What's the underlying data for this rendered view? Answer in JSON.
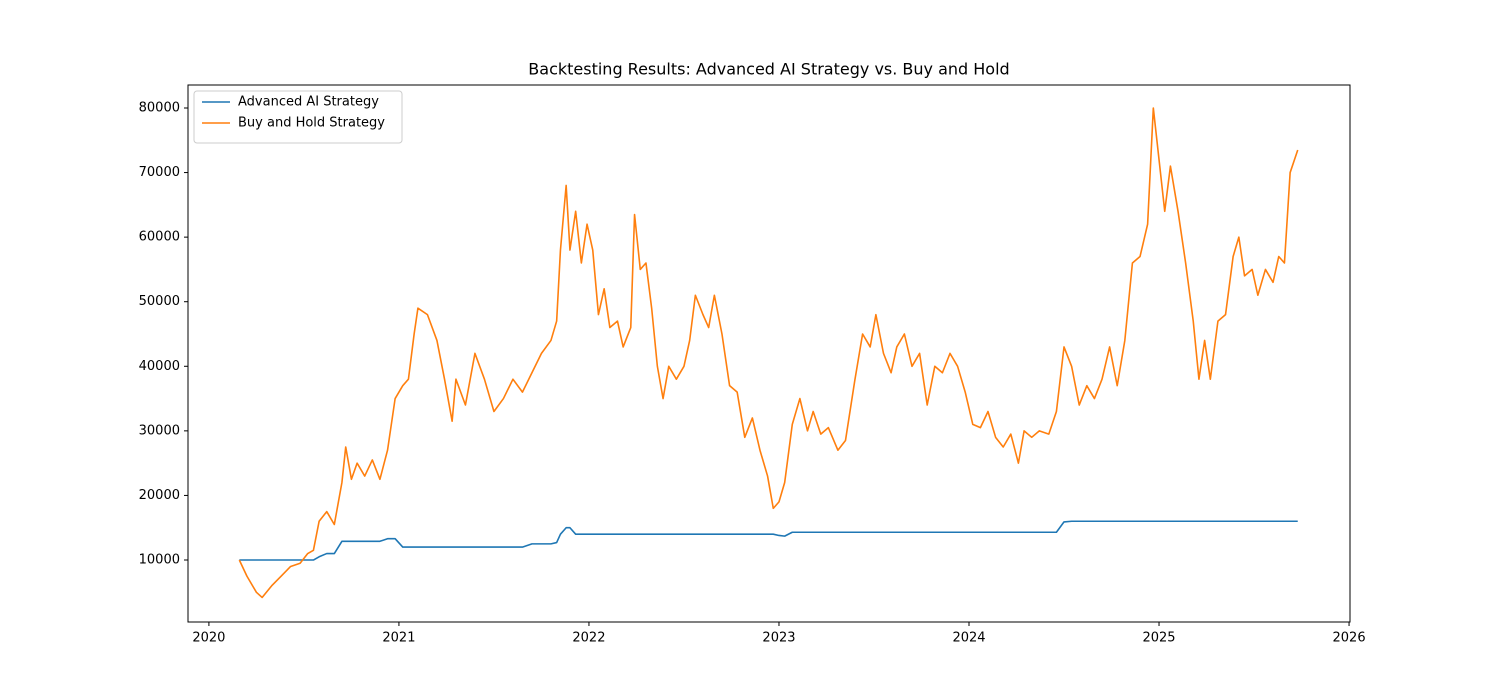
{
  "chart_data": {
    "type": "line",
    "title": "Backtesting Results: Advanced AI Strategy vs. Buy and Hold",
    "x": [
      2020.16,
      2020.2,
      2020.25,
      2020.28,
      2020.33,
      2020.38,
      2020.43,
      2020.48,
      2020.52,
      2020.55,
      2020.58,
      2020.62,
      2020.66,
      2020.7,
      2020.72,
      2020.75,
      2020.78,
      2020.82,
      2020.86,
      2020.9,
      2020.94,
      2020.98,
      2021.02,
      2021.05,
      2021.08,
      2021.1,
      2021.15,
      2021.2,
      2021.24,
      2021.28,
      2021.3,
      2021.35,
      2021.4,
      2021.45,
      2021.5,
      2021.55,
      2021.6,
      2021.65,
      2021.7,
      2021.75,
      2021.8,
      2021.83,
      2021.85,
      2021.88,
      2021.9,
      2021.93,
      2021.96,
      2021.99,
      2022.02,
      2022.05,
      2022.08,
      2022.11,
      2022.15,
      2022.18,
      2022.22,
      2022.24,
      2022.27,
      2022.3,
      2022.33,
      2022.36,
      2022.39,
      2022.42,
      2022.46,
      2022.5,
      2022.53,
      2022.56,
      2022.6,
      2022.63,
      2022.66,
      2022.7,
      2022.74,
      2022.78,
      2022.82,
      2022.86,
      2022.9,
      2022.94,
      2022.97,
      2023.0,
      2023.03,
      2023.07,
      2023.11,
      2023.15,
      2023.18,
      2023.22,
      2023.26,
      2023.31,
      2023.35,
      2023.4,
      2023.44,
      2023.48,
      2023.51,
      2023.55,
      2023.59,
      2023.62,
      2023.66,
      2023.7,
      2023.74,
      2023.78,
      2023.82,
      2023.86,
      2023.9,
      2023.94,
      2023.98,
      2024.02,
      2024.06,
      2024.1,
      2024.14,
      2024.18,
      2024.22,
      2024.26,
      2024.29,
      2024.33,
      2024.37,
      2024.42,
      2024.46,
      2024.5,
      2024.54,
      2024.58,
      2024.62,
      2024.66,
      2024.7,
      2024.74,
      2024.78,
      2024.82,
      2024.86,
      2024.9,
      2024.94,
      2024.97,
      2025.0,
      2025.03,
      2025.06,
      2025.1,
      2025.14,
      2025.18,
      2025.21,
      2025.24,
      2025.27,
      2025.31,
      2025.35,
      2025.39,
      2025.42,
      2025.45,
      2025.49,
      2025.52,
      2025.56,
      2025.6,
      2025.63,
      2025.66,
      2025.69,
      2025.73
    ],
    "series": [
      {
        "name": "Advanced AI Strategy",
        "color": "#1f77b4",
        "values": [
          10000,
          10000,
          10000,
          10000,
          10000,
          10000,
          10000,
          10000,
          10000,
          10000,
          10500,
          11000,
          11000,
          12900,
          12900,
          12900,
          12900,
          12900,
          12900,
          12900,
          13300,
          13300,
          12000,
          12000,
          12000,
          12000,
          12000,
          12000,
          12000,
          12000,
          12000,
          12000,
          12000,
          12000,
          12000,
          12000,
          12000,
          12000,
          12500,
          12500,
          12500,
          12700,
          14000,
          15000,
          15000,
          14000,
          14000,
          14000,
          14000,
          14000,
          14000,
          14000,
          14000,
          14000,
          14000,
          14000,
          14000,
          14000,
          14000,
          14000,
          14000,
          14000,
          14000,
          14000,
          14000,
          14000,
          14000,
          14000,
          14000,
          14000,
          14000,
          14000,
          14000,
          14000,
          14000,
          14000,
          14000,
          13800,
          13700,
          14300,
          14300,
          14300,
          14300,
          14300,
          14300,
          14300,
          14300,
          14300,
          14300,
          14300,
          14300,
          14300,
          14300,
          14300,
          14300,
          14300,
          14300,
          14300,
          14300,
          14300,
          14300,
          14300,
          14300,
          14300,
          14300,
          14300,
          14300,
          14300,
          14300,
          14300,
          14300,
          14300,
          14300,
          14300,
          14300,
          15900,
          16000,
          16000,
          16000,
          16000,
          16000,
          16000,
          16000,
          16000,
          16000,
          16000,
          16000,
          16000,
          16000,
          16000,
          16000,
          16000,
          16000,
          16000,
          16000,
          16000,
          16000,
          16000,
          16000,
          16000,
          16000,
          16000,
          16000,
          16000,
          16000,
          16000,
          16000,
          16000,
          16000,
          16000
        ]
      },
      {
        "name": "Buy and Hold Strategy",
        "color": "#ff7f0e",
        "values": [
          10000,
          7500,
          5000,
          4200,
          6000,
          7500,
          9000,
          9500,
          11000,
          11500,
          16000,
          17500,
          15500,
          22000,
          27500,
          22500,
          25000,
          23000,
          25500,
          22500,
          27000,
          35000,
          37000,
          38000,
          45000,
          49000,
          48000,
          44000,
          38000,
          31500,
          38000,
          34000,
          42000,
          38000,
          33000,
          35000,
          38000,
          36000,
          39000,
          42000,
          44000,
          47000,
          58000,
          68000,
          58000,
          64000,
          56000,
          62000,
          58000,
          48000,
          52000,
          46000,
          47000,
          43000,
          46000,
          63500,
          55000,
          56000,
          49000,
          40000,
          35000,
          40000,
          38000,
          40000,
          44000,
          51000,
          48000,
          46000,
          51000,
          45000,
          37000,
          36000,
          29000,
          32000,
          27000,
          23000,
          18000,
          19000,
          22000,
          31000,
          35000,
          30000,
          33000,
          29500,
          30500,
          27000,
          28500,
          38000,
          45000,
          43000,
          48000,
          42000,
          39000,
          43000,
          45000,
          40000,
          42000,
          34000,
          40000,
          39000,
          42000,
          40000,
          36000,
          31000,
          30500,
          33000,
          29000,
          27500,
          29500,
          25000,
          30000,
          29000,
          30000,
          29500,
          33000,
          43000,
          40000,
          34000,
          37000,
          35000,
          38000,
          43000,
          37000,
          44000,
          56000,
          57000,
          62000,
          80000,
          72000,
          64000,
          71000,
          64000,
          56000,
          47000,
          38000,
          44000,
          38000,
          47000,
          48000,
          57000,
          60000,
          54000,
          55000,
          51000,
          55000,
          53000,
          57000,
          56000,
          70000,
          73500
        ]
      }
    ],
    "xlim": [
      2019.89,
      2026.005
    ],
    "xticks": [
      2020,
      2021,
      2022,
      2023,
      2024,
      2025,
      2026
    ],
    "ylim": [
      400,
      83560
    ],
    "yticks": [
      10000,
      20000,
      30000,
      40000,
      50000,
      60000,
      70000,
      80000
    ],
    "grid": false,
    "legend": "upper-left"
  }
}
